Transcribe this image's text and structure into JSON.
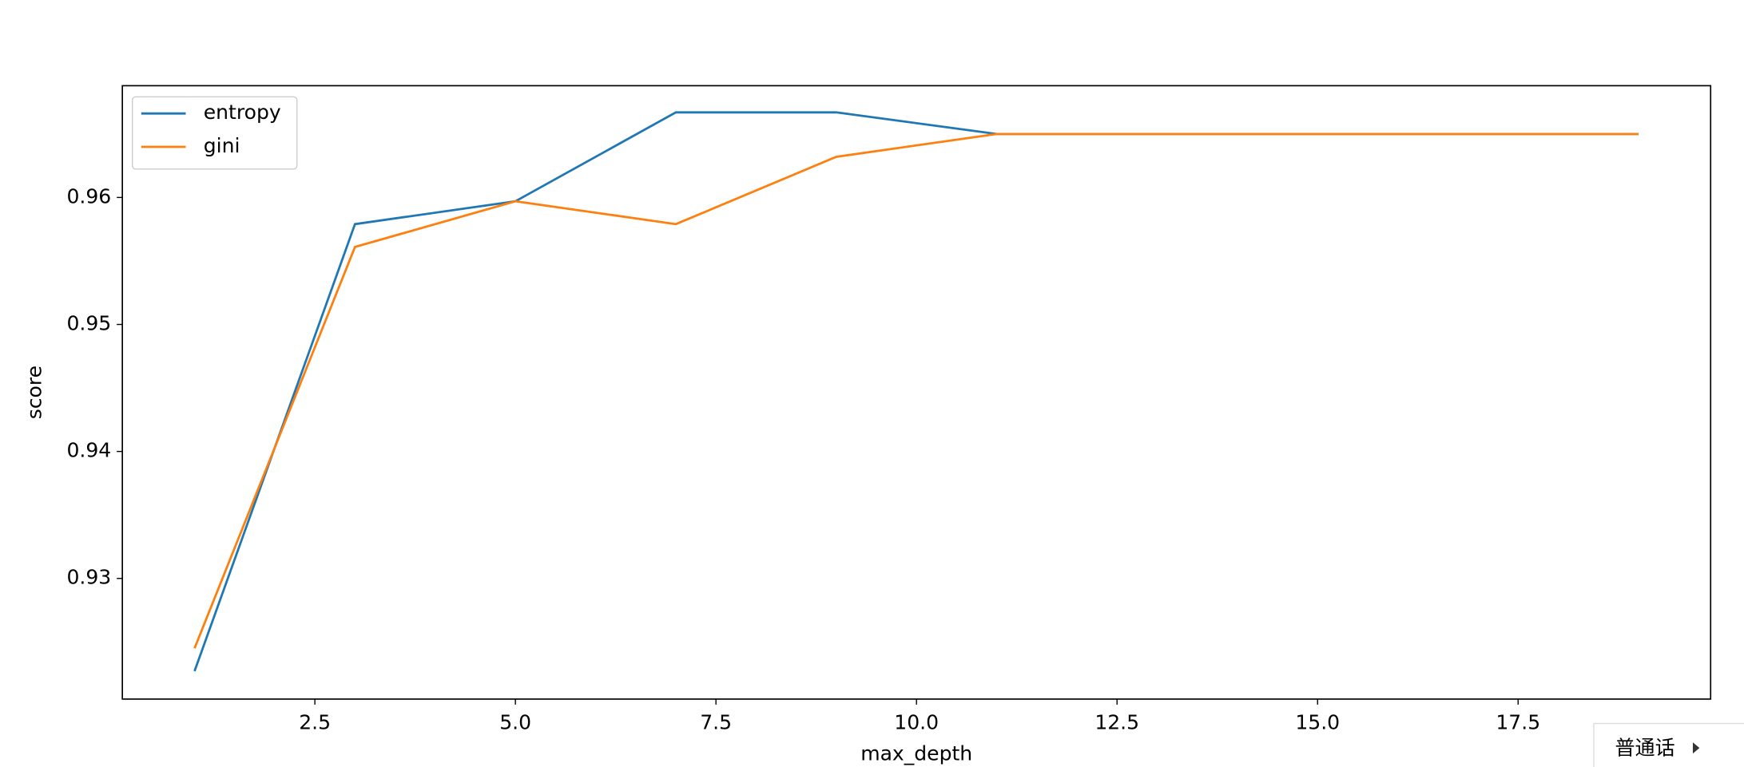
{
  "chart_data": {
    "type": "line",
    "x_label": "max_depth",
    "y_label": "score",
    "x": [
      1,
      3,
      5,
      7,
      9,
      11,
      13,
      15,
      17,
      19
    ],
    "series": [
      {
        "name": "entropy",
        "color": "#1f77b4",
        "values": [
          0.9227,
          0.9579,
          0.9597,
          0.9667,
          0.9667,
          0.965,
          0.965,
          0.965,
          0.965,
          0.965
        ]
      },
      {
        "name": "gini",
        "color": "#ff7f0e",
        "values": [
          0.9245,
          0.9561,
          0.9597,
          0.9579,
          0.9632,
          0.965,
          0.965,
          0.965,
          0.965,
          0.965
        ]
      }
    ],
    "xlim": [
      0.1,
      19.9
    ],
    "xticks": [
      2.5,
      {
        "value": 5,
        "label": "5.0"
      },
      7.5,
      {
        "value": 10,
        "label": "10.0"
      },
      12.5,
      {
        "value": 15,
        "label": "15.0"
      },
      17.5
    ],
    "ylim": [
      0.9205,
      0.9688
    ],
    "yticks": [
      0.93,
      0.94,
      0.95,
      0.96
    ],
    "grid": false,
    "legend": "upper left"
  },
  "widget": {
    "label": "普通话"
  }
}
